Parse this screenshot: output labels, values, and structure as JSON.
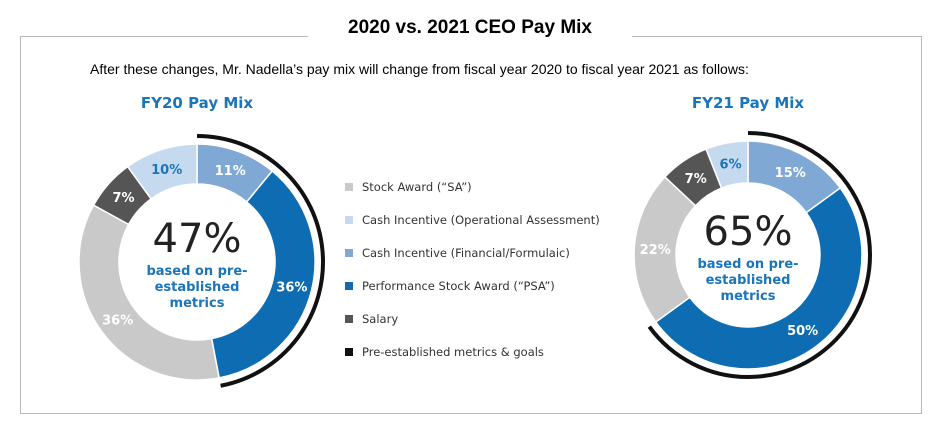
{
  "title": "2020 vs. 2021 CEO Pay Mix",
  "subtitle": "After these changes, Mr. Nadella’s pay mix will change from fiscal year 2020 to fiscal year 2021 as follows:",
  "colors": {
    "stock_award": "#c9c9c9",
    "cash_operational": "#c6daef",
    "cash_financial": "#80a8d4",
    "psa": "#0e6cb3",
    "salary": "#555555",
    "pre_established": "#111111",
    "accent_text": "#1a75bb"
  },
  "legend": [
    {
      "label": "Stock Award (“SA”)",
      "color": "#c9c9c9"
    },
    {
      "label": "Cash Incentive (Operational Assessment)",
      "color": "#c6daef"
    },
    {
      "label": "Cash Incentive (Financial/Formulaic)",
      "color": "#80a8d4"
    },
    {
      "label": "Performance Stock Award (“PSA”)",
      "color": "#0e6cb3"
    },
    {
      "label": "Salary",
      "color": "#555555"
    },
    {
      "label": "Pre-established metrics & goals",
      "color": "#111111"
    }
  ],
  "chart_data": [
    {
      "type": "pie",
      "title": "FY20 Pay Mix",
      "center_value": "47%",
      "center_text": [
        "based on pre-",
        "established",
        "metrics"
      ],
      "slices": [
        {
          "category": "Cash Incentive (Financial/Formulaic)",
          "value": 11,
          "label": "11%"
        },
        {
          "category": "Performance Stock Award (“PSA”)",
          "value": 36,
          "label": "36%"
        },
        {
          "category": "Stock Award (“SA”)",
          "value": 36,
          "label": "36%"
        },
        {
          "category": "Salary",
          "value": 7,
          "label": "7%"
        },
        {
          "category": "Cash Incentive (Operational Assessment)",
          "value": 10,
          "label": "10%"
        }
      ],
      "pre_established_share": 47
    },
    {
      "type": "pie",
      "title": "FY21 Pay Mix",
      "center_value": "65%",
      "center_text": [
        "based on pre-",
        "established",
        "metrics"
      ],
      "slices": [
        {
          "category": "Cash Incentive (Financial/Formulaic)",
          "value": 15,
          "label": "15%"
        },
        {
          "category": "Performance Stock Award (“PSA”)",
          "value": 50,
          "label": "50%"
        },
        {
          "category": "Stock Award (“SA”)",
          "value": 22,
          "label": "22%"
        },
        {
          "category": "Salary",
          "value": 7,
          "label": "7%"
        },
        {
          "category": "Cash Incentive (Operational Assessment)",
          "value": 6,
          "label": "6%"
        }
      ],
      "pre_established_share": 65
    }
  ]
}
